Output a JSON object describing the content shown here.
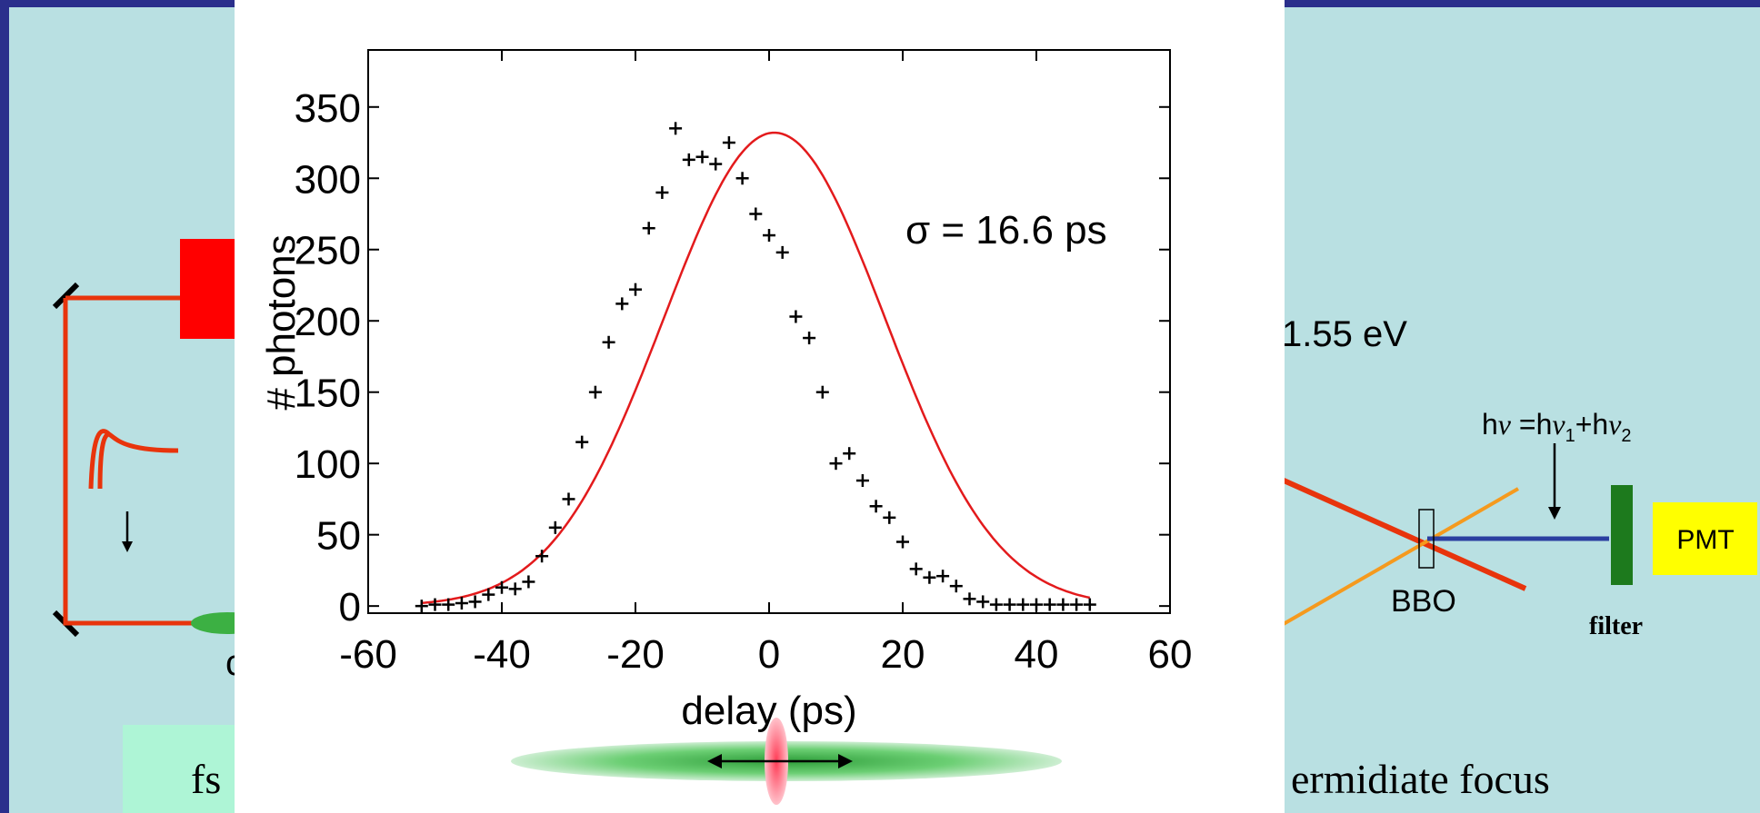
{
  "background_slide": {
    "photon_energy_label": "1.55 eV",
    "sum_frequency_label": {
      "h1": "h",
      "nu1": "ν",
      "eq": " =h",
      "nu2": "ν",
      "sub1": "1",
      "plus": "+h",
      "nu3": "ν",
      "sub2": "2"
    },
    "crystal_label": "BBO",
    "detector_label": "PMT",
    "filter_label": "filter",
    "caption_left_fragment": "fs",
    "caption_right_fragment": "ermidiate focus",
    "partial_left_label": "c",
    "colors": {
      "beam_red": "#e8340c",
      "beam_orange": "#f59a1e",
      "beam_blue": "#2b3fa0",
      "filter_green": "#1d7a1d",
      "pmt_yellow": "#ffff00",
      "caption_box": "#aef5d6",
      "block_red": "#ff0000"
    }
  },
  "chart_data": {
    "type": "scatter",
    "title": "",
    "xlabel": "delay (ps)",
    "ylabel": "# photons",
    "xlim": [
      -60,
      60
    ],
    "ylim": [
      -5,
      390
    ],
    "xticks": [
      -60,
      -40,
      -20,
      0,
      20,
      40,
      60
    ],
    "yticks": [
      0,
      50,
      100,
      150,
      200,
      250,
      300,
      350
    ],
    "annotation": "σ = 16.6 ps",
    "grid": false,
    "series": [
      {
        "type": "scatter",
        "marker": "+",
        "color": "#000000",
        "x": [
          -52,
          -50,
          -48,
          -46,
          -44,
          -42,
          -40,
          -38,
          -36,
          -34,
          -32,
          -30,
          -28,
          -26,
          -24,
          -22,
          -20,
          -18,
          -16,
          -14,
          -12,
          -10,
          -8,
          -6,
          -4,
          -2,
          0,
          2,
          4,
          6,
          8,
          10,
          12,
          14,
          16,
          18,
          20,
          22,
          24,
          26,
          28,
          30,
          32,
          34,
          36,
          38,
          40,
          42,
          44,
          46,
          48
        ],
        "y": [
          0,
          1,
          1,
          2,
          3,
          8,
          13,
          12,
          17,
          35,
          55,
          75,
          115,
          150,
          185,
          212,
          222,
          265,
          290,
          335,
          313,
          315,
          310,
          325,
          300,
          275,
          260,
          248,
          203,
          188,
          150,
          100,
          107,
          88,
          70,
          62,
          45,
          26,
          20,
          21,
          14,
          5,
          3,
          1,
          1,
          1,
          1,
          1,
          1,
          1,
          1
        ]
      },
      {
        "type": "line",
        "color": "#e31a1c",
        "curve": "gaussian",
        "amplitude": 332,
        "center": 0.8,
        "sigma": 16.6
      }
    ]
  },
  "beam_spot_colors": {
    "focus_green": "#3cb043",
    "spot_red": "#ff6b7a"
  }
}
